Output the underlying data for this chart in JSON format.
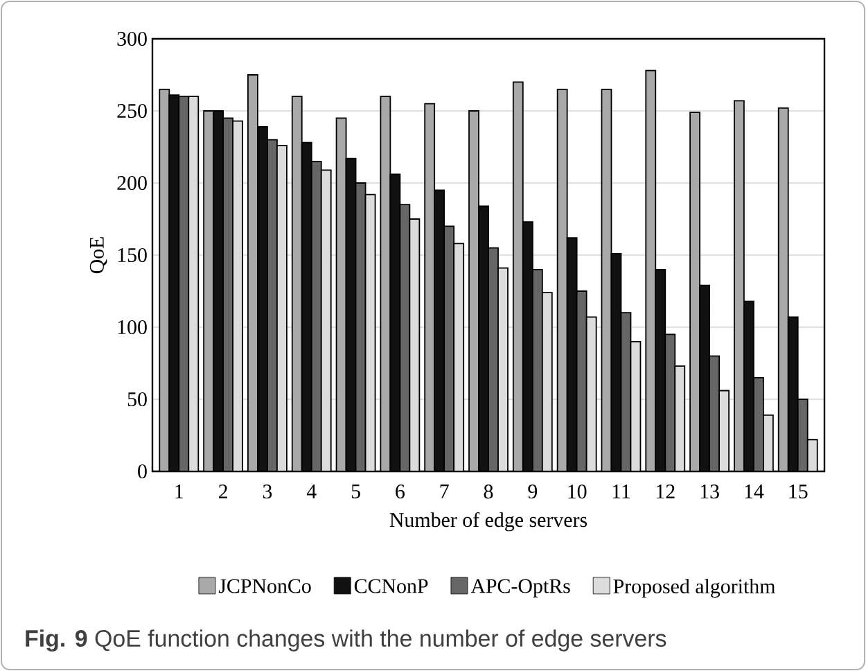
{
  "chart_data": {
    "type": "bar",
    "xlabel": "Number of  edge servers",
    "ylabel": "QoE",
    "categories": [
      "1",
      "2",
      "3",
      "4",
      "5",
      "6",
      "7",
      "8",
      "9",
      "10",
      "11",
      "12",
      "13",
      "14",
      "15"
    ],
    "series": [
      {
        "name": "JCPNonCo",
        "color": "#a8a8a8",
        "values": [
          265,
          250,
          275,
          260,
          245,
          260,
          255,
          250,
          270,
          265,
          265,
          278,
          249,
          257,
          252
        ]
      },
      {
        "name": "CCNonP",
        "color": "#111111",
        "values": [
          261,
          250,
          239,
          228,
          217,
          206,
          195,
          184,
          173,
          162,
          151,
          140,
          129,
          118,
          107
        ]
      },
      {
        "name": "APC-OptRs",
        "color": "#666666",
        "values": [
          260,
          245,
          230,
          215,
          200,
          185,
          170,
          155,
          140,
          125,
          110,
          95,
          80,
          65,
          50
        ]
      },
      {
        "name": "Proposed algorithm",
        "color": "#dcdcdc",
        "values": [
          260,
          243,
          226,
          209,
          192,
          175,
          158,
          141,
          124,
          107,
          90,
          73,
          56,
          39,
          22
        ]
      }
    ],
    "ylim": [
      0,
      300
    ],
    "yticks": [
      0,
      50,
      100,
      150,
      200,
      250,
      300
    ],
    "grid": "y",
    "legend": "bottom",
    "annotations": [
      "**Fig. 9** QoE function changes with the number of edge servers"
    ]
  }
}
